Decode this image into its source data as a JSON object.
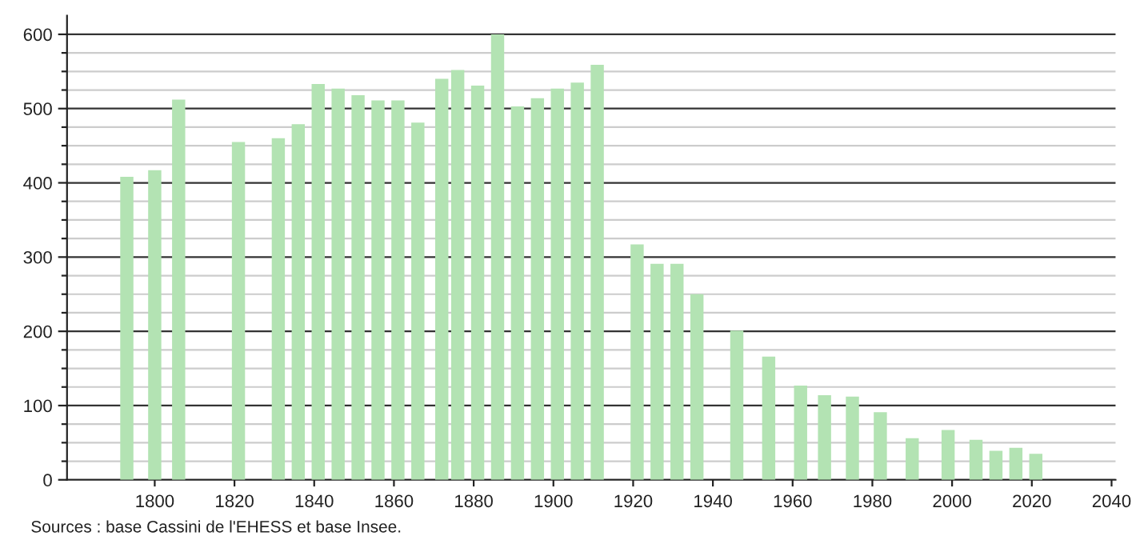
{
  "chart_data": {
    "type": "bar",
    "x": [
      1793,
      1800,
      1806,
      1821,
      1831,
      1836,
      1841,
      1846,
      1851,
      1856,
      1861,
      1866,
      1872,
      1876,
      1881,
      1886,
      1891,
      1896,
      1901,
      1906,
      1911,
      1921,
      1926,
      1931,
      1936,
      1946,
      1954,
      1962,
      1968,
      1975,
      1982,
      1990,
      1999,
      2006,
      2011,
      2016,
      2021
    ],
    "values": [
      408,
      417,
      512,
      455,
      460,
      479,
      533,
      527,
      518,
      511,
      511,
      481,
      540,
      552,
      531,
      600,
      503,
      514,
      527,
      535,
      559,
      317,
      291,
      291,
      250,
      201,
      166,
      127,
      114,
      112,
      91,
      56,
      67,
      54,
      39,
      43,
      35
    ],
    "color": "#b3e3b3",
    "xlim": [
      1778,
      2041
    ],
    "xticks": [
      1800,
      1820,
      1840,
      1860,
      1880,
      1900,
      1920,
      1940,
      1960,
      1980,
      2000,
      2020,
      2040
    ],
    "ylim": [
      0,
      625
    ],
    "yticks": [
      0,
      {
        "value": 25,
        "label": null
      },
      {
        "value": 50,
        "label": null
      },
      {
        "value": 75,
        "label": null
      },
      100,
      {
        "value": 125,
        "label": null
      },
      {
        "value": 150,
        "label": null
      },
      {
        "value": 175,
        "label": null
      },
      200,
      {
        "value": 225,
        "label": null
      },
      {
        "value": 250,
        "label": null
      },
      {
        "value": 275,
        "label": null
      },
      300,
      {
        "value": 325,
        "label": null
      },
      {
        "value": 350,
        "label": null
      },
      {
        "value": 375,
        "label": null
      },
      400,
      {
        "value": 425,
        "label": null
      },
      {
        "value": 450,
        "label": null
      },
      {
        "value": 475,
        "label": null
      },
      500,
      {
        "value": 525,
        "label": null
      },
      {
        "value": 550,
        "label": null
      },
      {
        "value": 575,
        "label": null
      },
      600
    ],
    "grid": "y",
    "annotations": [
      "Sources : base Cassini de l'EHESS et base Insee."
    ]
  }
}
